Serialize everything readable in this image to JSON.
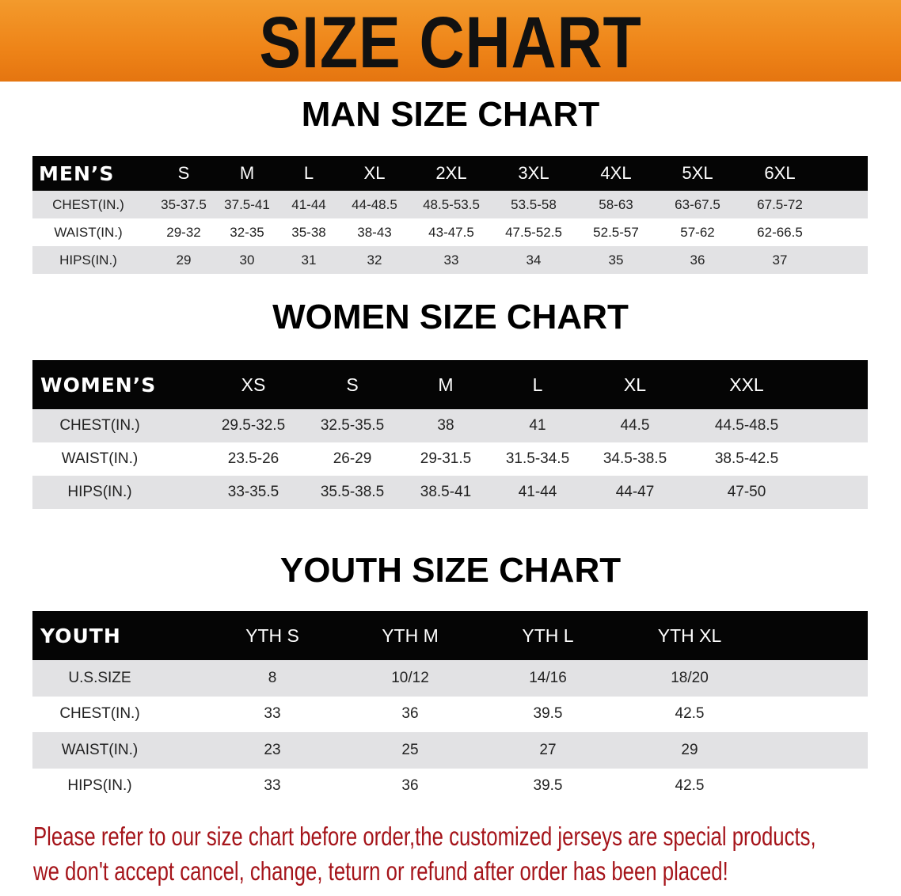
{
  "banner": {
    "title": "SIZE CHART",
    "color": "#ee8418"
  },
  "men": {
    "title": "MAN SIZE CHART",
    "header": [
      "MEN’S",
      "S",
      "M",
      "L",
      "XL",
      "2XL",
      "3XL",
      "4XL",
      "5XL",
      "6XL"
    ],
    "rows": [
      [
        "CHEST(IN.)",
        "35-37.5",
        "37.5-41",
        "41-44",
        "44-48.5",
        "48.5-53.5",
        "53.5-58",
        "58-63",
        "63-67.5",
        "67.5-72"
      ],
      [
        "WAIST(IN.)",
        "29-32",
        "32-35",
        "35-38",
        "38-43",
        "43-47.5",
        "47.5-52.5",
        "52.5-57",
        "57-62",
        "62-66.5"
      ],
      [
        "HIPS(IN.)",
        "29",
        "30",
        "31",
        "32",
        "33",
        "34",
        "35",
        "36",
        "37"
      ]
    ]
  },
  "women": {
    "title": "WOMEN SIZE CHART",
    "header": [
      "WOMEN’S",
      "XS",
      "S",
      "M",
      "L",
      "XL",
      "XXL"
    ],
    "rows": [
      [
        "CHEST(IN.)",
        "29.5-32.5",
        "32.5-35.5",
        "38",
        "41",
        "44.5",
        "44.5-48.5"
      ],
      [
        "WAIST(IN.)",
        "23.5-26",
        "26-29",
        "29-31.5",
        "31.5-34.5",
        "34.5-38.5",
        "38.5-42.5"
      ],
      [
        "HIPS(IN.)",
        "33-35.5",
        "35.5-38.5",
        "38.5-41",
        "41-44",
        "44-47",
        "47-50"
      ]
    ]
  },
  "youth": {
    "title": "YOUTH SIZE CHART",
    "header": [
      "YOUTH",
      "YTH S",
      "YTH M",
      "YTH L",
      "YTH XL"
    ],
    "rows": [
      [
        "U.S.SIZE",
        "8",
        "10/12",
        "14/16",
        "18/20"
      ],
      [
        "CHEST(IN.)",
        "33",
        "36",
        "39.5",
        "42.5"
      ],
      [
        "WAIST(IN.)",
        "23",
        "25",
        "27",
        "29"
      ],
      [
        "HIPS(IN.)",
        "33",
        "36",
        "39.5",
        "42.5"
      ]
    ]
  },
  "notice": {
    "line1": "Please refer to our size chart before order,the customized jerseys are special products,",
    "line2": "we don't accept cancel, change, teturn or refund after order has been placed!",
    "color": "#a5141a"
  }
}
